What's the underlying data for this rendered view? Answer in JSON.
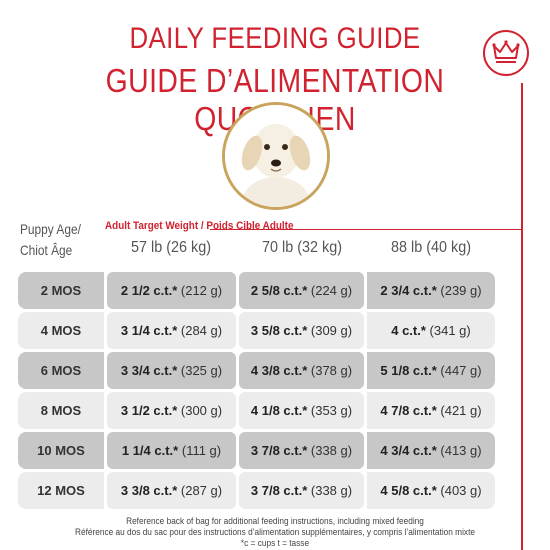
{
  "header": {
    "title_en": "DAILY FEEDING GUIDE",
    "title_fr": "GUIDE D’ALIMENTATION QUOTIDIEN"
  },
  "colors": {
    "brand_red": "#d1222f",
    "photo_ring": "#c9a45c",
    "row_dark": "#c7c7c7",
    "row_light": "#ececec"
  },
  "icons": {
    "badge": "crown-icon",
    "photo": "puppy-photo"
  },
  "table": {
    "adult_weight_label": "Adult Target Weight / Poids Cible Adulte",
    "puppy_age_label_1": "Puppy Age/",
    "puppy_age_label_2": "Chiot Âge",
    "columns": [
      "57 lb (26 kg)",
      "70 lb (32 kg)",
      "88 lb (40 kg)"
    ],
    "rows": [
      {
        "age": "2 MOS",
        "c1a": "2 1/2 c.t.*",
        "c1b": "(212 g)",
        "c2a": "2 5/8 c.t.*",
        "c2b": "(224 g)",
        "c3a": "2 3/4 c.t.*",
        "c3b": "(239 g)"
      },
      {
        "age": "4 MOS",
        "c1a": "3 1/4 c.t.*",
        "c1b": "(284 g)",
        "c2a": "3 5/8 c.t.*",
        "c2b": "(309 g)",
        "c3a": "4 c.t.*",
        "c3b": "(341 g)"
      },
      {
        "age": "6 MOS",
        "c1a": "3 3/4 c.t.*",
        "c1b": "(325 g)",
        "c2a": "4 3/8 c.t.*",
        "c2b": "(378 g)",
        "c3a": "5 1/8 c.t.*",
        "c3b": "(447 g)"
      },
      {
        "age": "8 MOS",
        "c1a": "3 1/2 c.t.*",
        "c1b": "(300 g)",
        "c2a": "4 1/8 c.t.*",
        "c2b": "(353 g)",
        "c3a": "4 7/8 c.t.*",
        "c3b": "(421 g)"
      },
      {
        "age": "10 MOS",
        "c1a": "1 1/4 c.t.*",
        "c1b": "(111 g)",
        "c2a": "3 7/8 c.t.*",
        "c2b": "(338 g)",
        "c3a": "4 3/4 c.t.*",
        "c3b": "(413 g)"
      },
      {
        "age": "12 MOS",
        "c1a": "3 3/8 c.t.*",
        "c1b": "(287 g)",
        "c2a": "3 7/8 c.t.*",
        "c2b": "(338 g)",
        "c3a": "4 5/8 c.t.*",
        "c3b": "(403 g)"
      }
    ]
  },
  "footer": {
    "line1": "Reference back of bag for additional feeding instructions, including mixed feeding",
    "line2": "Référence au dos du sac pour des instructions d’alimentation supplémentaires, y compris l’alimentation mixte",
    "line3": "*c = cups t = tasse"
  }
}
